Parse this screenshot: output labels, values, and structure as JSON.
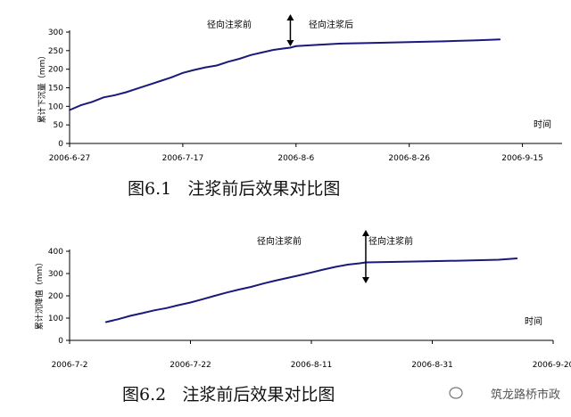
{
  "chart_data": [
    {
      "type": "line",
      "xlabel": "时间",
      "ylabel": "累计下沉量（mm）",
      "ylim": [
        0,
        300
      ],
      "yticks": [
        0,
        50,
        100,
        150,
        200,
        250,
        300
      ],
      "xticks": [
        "2006-6-27",
        "2006-7-17",
        "2006-8-6",
        "2006-8-26",
        "2006-9-15"
      ],
      "x_start": "2006-6-27",
      "annotation_date": "2006-8-5",
      "annotations": [
        "径向注浆前",
        "径向注浆后"
      ],
      "series": [
        {
          "color": "#1a1a7a",
          "x": [
            "2006-6-27",
            "2006-6-29",
            "2006-7-1",
            "2006-7-3",
            "2006-7-5",
            "2006-7-7",
            "2006-7-9",
            "2006-7-11",
            "2006-7-13",
            "2006-7-15",
            "2006-7-17",
            "2006-7-19",
            "2006-7-21",
            "2006-7-23",
            "2006-7-25",
            "2006-7-27",
            "2006-7-29",
            "2006-7-31",
            "2006-8-2",
            "2006-8-4",
            "2006-8-5",
            "2006-8-6",
            "2006-8-10",
            "2006-8-14",
            "2006-8-20",
            "2006-8-26",
            "2006-9-1",
            "2006-9-7",
            "2006-9-11"
          ],
          "values": [
            90,
            103,
            112,
            124,
            130,
            138,
            148,
            158,
            168,
            178,
            190,
            198,
            205,
            210,
            220,
            228,
            238,
            245,
            252,
            256,
            258,
            262,
            266,
            269,
            271,
            273,
            275,
            278,
            280
          ]
        }
      ]
    },
    {
      "type": "line",
      "xlabel": "时间",
      "ylabel": "累计沉降值（mm）",
      "ylim": [
        0,
        400
      ],
      "yticks": [
        0,
        100,
        200,
        300,
        400
      ],
      "xticks": [
        "2006-7-2",
        "2006-7-22",
        "2006-8-11",
        "2006-8-31",
        "2006-9-20"
      ],
      "x_start": "2006-7-2",
      "annotation_date": "2006-8-20",
      "annotations": [
        "径向注浆前",
        "径向注浆前"
      ],
      "series": [
        {
          "color": "#1a1a7a",
          "x": [
            "2006-7-8",
            "2006-7-10",
            "2006-7-12",
            "2006-7-14",
            "2006-7-16",
            "2006-7-18",
            "2006-7-20",
            "2006-7-22",
            "2006-7-24",
            "2006-7-26",
            "2006-7-28",
            "2006-7-30",
            "2006-8-1",
            "2006-8-3",
            "2006-8-5",
            "2006-8-7",
            "2006-8-9",
            "2006-8-11",
            "2006-8-13",
            "2006-8-15",
            "2006-8-17",
            "2006-8-19",
            "2006-8-20",
            "2006-8-24",
            "2006-8-30",
            "2006-9-5",
            "2006-9-11",
            "2006-9-14"
          ],
          "values": [
            82,
            95,
            110,
            122,
            135,
            145,
            158,
            170,
            185,
            200,
            215,
            228,
            240,
            255,
            268,
            280,
            292,
            305,
            318,
            330,
            340,
            346,
            350,
            352,
            355,
            358,
            362,
            368
          ]
        }
      ]
    }
  ],
  "captions": [
    "图6.1   注浆前后效果对比图",
    "图6.2   注浆前后效果对比图"
  ],
  "watermark": "筑龙路桥市政"
}
